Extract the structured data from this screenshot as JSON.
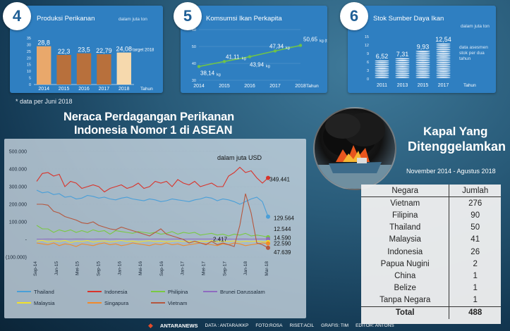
{
  "cards": [
    {
      "num": "4",
      "title": "Produksi Perikanan",
      "unit": "dalam juta ton",
      "note_target": "target 2018",
      "axis_label": "Tahun"
    },
    {
      "num": "5",
      "title": "Komsumsi Ikan Perkapita",
      "axis_label": "Tahun"
    },
    {
      "num": "6",
      "title": "Stok Sumber Daya Ikan",
      "unit": "dalam juta ton",
      "note_stock": "data asesmen stok per dua tahun",
      "axis_label": "Tahun"
    }
  ],
  "footnote": "* data per Juni 2018",
  "trade_title_1": "Neraca Perdagangan Perikanan",
  "trade_title_2": "Indonesia Nomor 1 di ASEAN",
  "ships": {
    "title_1": "Kapal Yang",
    "title_2": "Ditenggelamkan",
    "period": "November 2014 - Agustus 2018",
    "col_country": "Negara",
    "col_total": "Jumlah",
    "rows": [
      {
        "country": "Vietnam",
        "count": "276"
      },
      {
        "country": "Filipina",
        "count": "90"
      },
      {
        "country": "Thailand",
        "count": "50"
      },
      {
        "country": "Malaysia",
        "count": "41"
      },
      {
        "country": "Indonesia",
        "count": "26"
      },
      {
        "country": "Papua Nugini",
        "count": "2"
      },
      {
        "country": "China",
        "count": "1"
      },
      {
        "country": "Belize",
        "count": "1"
      },
      {
        "country": "Tanpa Negara",
        "count": "1"
      }
    ],
    "total_label": "Total",
    "total_value": "488"
  },
  "footer": {
    "brand": "ANTARANEWS",
    "data": "DATA : ANTARA/KKP",
    "foto": "FOTO:ROSA",
    "riset": "RISET:ACIL",
    "grafis": "GRAFIS: TIM",
    "editor": "EDITOR: ANTONS"
  },
  "chart_data": [
    {
      "type": "bar",
      "title": "Produksi Perikanan",
      "unit": "dalam juta ton",
      "categories": [
        "2014",
        "2015",
        "2016",
        "2017",
        "2018"
      ],
      "values": [
        28.8,
        22.3,
        23.5,
        22.79,
        24.08
      ],
      "value_labels": [
        "28,8",
        "22,3",
        "23,5",
        "22,79",
        "24,08"
      ],
      "ylim": [
        0,
        35
      ],
      "yticks": [
        "0",
        "5",
        "10",
        "15",
        "20",
        "25",
        "30",
        "35"
      ],
      "xlabel": "Tahun",
      "colors": [
        "#e9a86b",
        "#b8703c",
        "#b8703c",
        "#b8703c",
        "#f6d9ad"
      ]
    },
    {
      "type": "line",
      "title": "Komsumsi Ikan Perkapita",
      "categories": [
        "2014",
        "2015",
        "2016",
        "2017",
        "2018"
      ],
      "values": [
        38.14,
        41.11,
        43.94,
        47.34,
        50.65
      ],
      "value_labels": [
        "38,14",
        "41,11",
        "43,94",
        "47,34",
        "50,65"
      ],
      "value_units": [
        "kg",
        "kg",
        "kg",
        "kg",
        "kg (target)"
      ],
      "ylim": [
        30,
        60
      ],
      "yticks": [
        "30",
        "40",
        "50",
        "60"
      ],
      "xlabel": "Tahun",
      "color": "#6ec24a"
    },
    {
      "type": "bar",
      "title": "Stok Sumber Daya Ikan",
      "unit": "dalam juta ton",
      "categories": [
        "2011",
        "2013",
        "2015",
        "2017"
      ],
      "values": [
        6.52,
        7.31,
        9.93,
        12.54
      ],
      "value_labels": [
        "6,52",
        "7,31",
        "9,93",
        "12,54"
      ],
      "ylim": [
        0,
        15
      ],
      "yticks": [
        "0",
        "3",
        "6",
        "9",
        "12",
        "15"
      ],
      "xlabel": "Tahun"
    },
    {
      "type": "line",
      "unit": "dalam juta USD",
      "yticks": [
        "500.000",
        "400.000",
        "300.000",
        "200.000",
        "100.000",
        "-",
        "(100.000)"
      ],
      "ylim": [
        -100000,
        500000
      ],
      "xticks": [
        "Sep-14",
        "Jan-15",
        "Mei-15",
        "Sep-15",
        "Jan-16",
        "Mei-16",
        "Sep-16",
        "Jan-17",
        "Mei-17",
        "Sep-17",
        "Jan-18",
        "Mar-18"
      ],
      "series": [
        {
          "name": "Thailand",
          "color": "#4a9fd8",
          "end_label": "129.564",
          "values": [
            280000,
            265000,
            270000,
            255000,
            260000,
            240000,
            245000,
            230000,
            235000,
            250000,
            245000,
            235000,
            240000,
            230000,
            225000,
            235000,
            240000,
            230000,
            225000,
            220000,
            230000,
            225000,
            215000,
            220000,
            230000,
            225000,
            220000,
            215000,
            225000,
            230000,
            240000,
            235000,
            220000,
            230000,
            225000,
            215000,
            200000,
            215000,
            230000,
            240000,
            215000,
            129564
          ]
        },
        {
          "name": "Indonesia",
          "color": "#d9342b",
          "end_label": "349.441",
          "values": [
            330000,
            375000,
            380000,
            360000,
            370000,
            300000,
            330000,
            320000,
            290000,
            300000,
            310000,
            300000,
            270000,
            290000,
            300000,
            310000,
            290000,
            300000,
            320000,
            290000,
            300000,
            330000,
            320000,
            330000,
            300000,
            340000,
            320000,
            310000,
            330000,
            300000,
            310000,
            320000,
            300000,
            300000,
            360000,
            380000,
            410000,
            380000,
            390000,
            350000,
            320000,
            349441
          ]
        },
        {
          "name": "Philipina",
          "color": "#7ac943",
          "end_label": "12.544",
          "values": [
            80000,
            60000,
            60000,
            40000,
            55000,
            45000,
            55000,
            40000,
            50000,
            40000,
            55000,
            45000,
            50000,
            30000,
            50000,
            45000,
            40000,
            35000,
            45000,
            40000,
            35000,
            40000,
            30000,
            35000,
            45000,
            30000,
            40000,
            35000,
            40000,
            25000,
            30000,
            35000,
            25000,
            30000,
            20000,
            30000,
            25000,
            35000,
            20000,
            25000,
            20000,
            12544
          ]
        },
        {
          "name": "Brunei Darussalam",
          "color": "#8e6cc0",
          "end_label": "2.417",
          "values": [
            2000,
            2100,
            2200,
            2000,
            2300,
            2100,
            2000,
            2200,
            2400,
            2100,
            2000,
            2200,
            2300,
            2100,
            2200,
            2000,
            2100,
            2300,
            2200,
            2100,
            2000,
            2200,
            2300,
            2100,
            2400,
            2200,
            2100,
            2300,
            2200,
            2417,
            2300,
            2200,
            2100,
            2300,
            2200,
            2100,
            2300,
            2200,
            2100,
            2300,
            2200,
            2417
          ]
        },
        {
          "name": "Malaysia",
          "color": "#f2e12b",
          "end_label": "-14.590",
          "values": [
            -10000,
            -5000,
            -15000,
            -8000,
            -12000,
            -5000,
            -18000,
            -10000,
            -12000,
            -6000,
            -15000,
            -10000,
            -8000,
            -14000,
            -10000,
            -6000,
            -12000,
            -9000,
            -15000,
            -10000,
            -7000,
            -12000,
            -9000,
            -14000,
            -10000,
            -8000,
            -12000,
            -10000,
            -15000,
            -9000,
            -11000,
            -7000,
            -13000,
            -10000,
            -12000,
            -8000,
            -14000,
            -10000,
            -12000,
            -9000,
            -13000,
            -14590
          ]
        },
        {
          "name": "Singapura",
          "color": "#f08a2c",
          "end_label": "-22.590",
          "values": [
            -20000,
            -25000,
            -30000,
            -20000,
            -35000,
            -25000,
            -30000,
            -40000,
            -25000,
            -30000,
            -35000,
            -25000,
            -20000,
            -30000,
            -25000,
            -35000,
            -30000,
            -20000,
            -25000,
            -30000,
            -35000,
            -25000,
            -30000,
            -20000,
            -30000,
            -25000,
            -35000,
            -30000,
            -25000,
            -20000,
            -25000,
            -30000,
            -35000,
            -25000,
            -30000,
            -20000,
            -25000,
            -35000,
            -30000,
            -25000,
            -20000,
            -22590
          ]
        },
        {
          "name": "Vietnam",
          "color": "#b5573e",
          "end_label": "-47.639",
          "values": [
            200000,
            200000,
            195000,
            160000,
            150000,
            130000,
            120000,
            110000,
            95000,
            90000,
            100000,
            80000,
            70000,
            60000,
            55000,
            70000,
            60000,
            50000,
            40000,
            30000,
            20000,
            40000,
            60000,
            30000,
            20000,
            10000,
            0,
            -20000,
            -10000,
            -20000,
            -30000,
            -10000,
            -30000,
            -20000,
            -30000,
            -40000,
            80000,
            260000,
            150000,
            -20000,
            -30000,
            -47639
          ]
        }
      ]
    }
  ]
}
